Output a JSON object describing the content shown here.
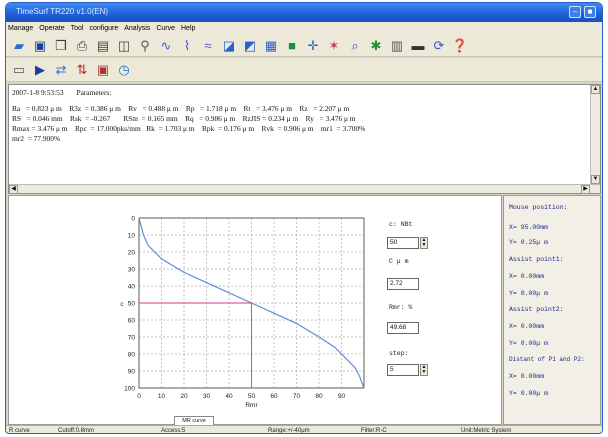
{
  "window": {
    "title": "TimeSurf TR220 v1.0(EN)",
    "buttons": [
      "–",
      "■"
    ]
  },
  "menu": [
    "Manage",
    "Operate",
    "Tool",
    "configure",
    "Analysis",
    "Curve",
    "Help"
  ],
  "toolbar1_icons": [
    "open-icon",
    "save-icon",
    "copy-icon",
    "print-icon",
    "print-setup-icon",
    "print-preview-icon",
    "zoom-icon",
    "profile-icon",
    "roughness-icon",
    "waviness-icon",
    "filter-curve-icon",
    "mr-curve-icon",
    "table-icon",
    "export-icon",
    "crosshair-icon",
    "marker-icon",
    "search-icon",
    "gear-icon",
    "histogram-icon",
    "monitor-icon",
    "refresh-icon",
    "help-icon"
  ],
  "toolbar2_icons": [
    "device-icon",
    "play-icon",
    "transfer-icon",
    "sort-icon",
    "measure-icon",
    "clock-icon"
  ],
  "params": {
    "header": "2007-1-8 9:53:53       Parameters:",
    "lines": [
      "Ra   = 0.823 μ m    R3z  = 0.386 μ m    Rv   = 0.488 μ m    Rp   = 1.718 μ m    Rt   = 3.476 μ m    Rz   = 2.207 μ m",
      "RS   = 0.046 mm    Rsk  = -0.267       RSm  = 0.165 mm    Rq   = 0.986 μ m    RzJIS = 0.234 μ m    Ry   = 3.476 μ m",
      "Rmax = 3.476 μ m    Rpc  = 17.000pks/mm   Rk  = 1.703 μ m    Rpk  = 0.176 μ m    Rvk  = 0.906 μ m    mr1  = 3.700%",
      "mr2  = 77.900%"
    ]
  },
  "chart_data": {
    "type": "line",
    "title": "",
    "xlabel": "Rmr",
    "ylabel": "c",
    "xlim": [
      0,
      100
    ],
    "ylim": [
      0,
      100
    ],
    "y_inverted": true,
    "x_ticks": [
      0,
      10,
      20,
      30,
      40,
      50,
      60,
      70,
      80,
      90
    ],
    "y_ticks": [
      0,
      10,
      20,
      30,
      40,
      50,
      60,
      70,
      80,
      90,
      100
    ],
    "series": [
      {
        "name": "MR curve",
        "x": [
          0,
          1,
          2,
          4,
          7,
          10,
          15,
          20,
          30,
          40,
          50,
          60,
          70,
          80,
          87,
          90,
          93,
          96,
          98,
          100
        ],
        "y": [
          0,
          5,
          10,
          16,
          20,
          24,
          28,
          32,
          38,
          44,
          50,
          56,
          62,
          70,
          76,
          80,
          84,
          88,
          93,
          100
        ]
      }
    ],
    "crosshair": {
      "x": 50,
      "y": 50
    },
    "legend": "MR curve",
    "grid": true,
    "grid_style": "dashed"
  },
  "controls": {
    "c_label": "c: NBt",
    "c_value": "50",
    "cum_label": "C μ m",
    "cum_value": "2.72",
    "rmr_label": "Rmr: %",
    "rmr_value": "49.68",
    "step_label": "step:",
    "step_value": "5"
  },
  "right_panel": {
    "mouse_title": "Mouse position:",
    "mouse_x": "X= 95.00mm",
    "mouse_y": "Y= 0.25μ m",
    "ap1_title": "Assist point1:",
    "ap1_x": "X=    0.00mm",
    "ap1_y": "Y= 0.00μ m",
    "ap2_title": "Assist point2:",
    "ap2_x": "X=    0.00mm",
    "ap2_y": "Y= 0.00μ m",
    "dist_title": "Distant of P1 and P2:",
    "dist_x": "X=    0.00mm",
    "dist_y": "Y= 0.00μ m"
  },
  "status": {
    "curve": "R curve",
    "cutoff": "Cutoff:0.8mm",
    "access": "Access:5",
    "range": "Range:+/-40μm",
    "filter": "Filter:R-C",
    "unit": "Unit:Metric System"
  },
  "colors": {
    "curve": "#5b8ed8",
    "crosshair": "#d23a8a",
    "title_bar": "#2563d9"
  }
}
